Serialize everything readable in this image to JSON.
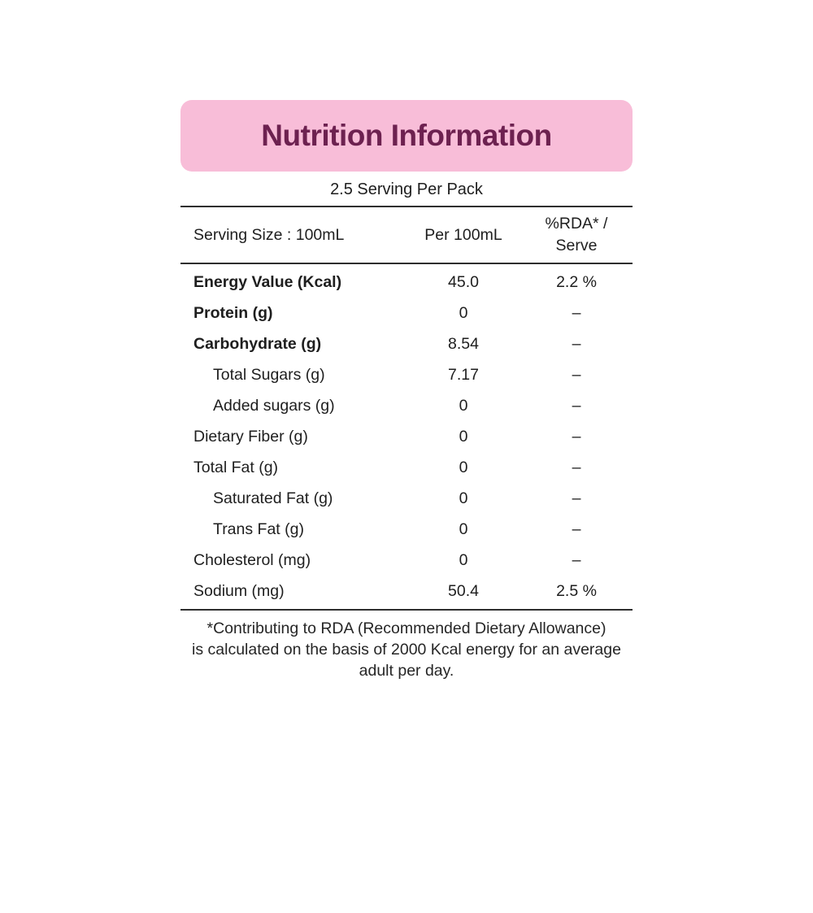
{
  "title": "Nutrition Information",
  "serving_per_pack": "2.5 Serving Per Pack",
  "columns": {
    "serving_size": "Serving Size : 100mL",
    "per_100ml": "Per 100mL",
    "rda_line1": "%RDA* /",
    "rda_line2": "Serve"
  },
  "rows": [
    {
      "name": "Energy Value (Kcal)",
      "per_100ml": "45.0",
      "rda": "2.2 %"
    },
    {
      "name": "Protein (g)",
      "per_100ml": "0",
      "rda": "–"
    },
    {
      "name": "Carbohydrate (g)",
      "per_100ml": "8.54",
      "rda": "–"
    },
    {
      "name": "Total Sugars (g)",
      "per_100ml": "7.17",
      "rda": "–"
    },
    {
      "name": "Added sugars (g)",
      "per_100ml": "0",
      "rda": "–"
    },
    {
      "name": "Dietary Fiber (g)",
      "per_100ml": "0",
      "rda": "–"
    },
    {
      "name": "Total Fat (g)",
      "per_100ml": "0",
      "rda": "–"
    },
    {
      "name": "Saturated Fat (g)",
      "per_100ml": "0",
      "rda": "–"
    },
    {
      "name": "Trans Fat (g)",
      "per_100ml": "0",
      "rda": "–"
    },
    {
      "name": "Cholesterol (mg)",
      "per_100ml": "0",
      "rda": "–"
    },
    {
      "name": "Sodium (mg)",
      "per_100ml": "50.4",
      "rda": "2.5 %"
    }
  ],
  "footnote_lines": [
    "*Contributing to RDA (Recommended Dietary Allowance)",
    "is calculated on the basis of 2000 Kcal energy for an average",
    "adult per day."
  ],
  "colors": {
    "header_bg": "#f8bdd8",
    "header_text": "#6d2150",
    "body_text": "#1e1e1e",
    "line": "#2e2e2e"
  }
}
